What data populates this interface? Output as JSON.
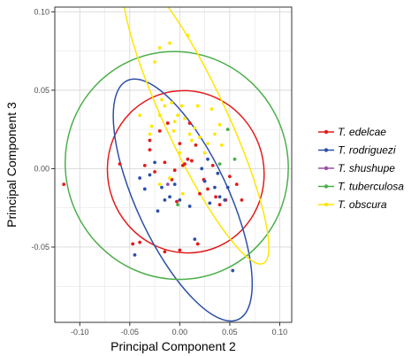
{
  "chart_data": {
    "type": "scatter",
    "xlabel": "Principal Component 2",
    "ylabel": "Principal Component 3",
    "xlim": [
      -0.125,
      0.112
    ],
    "ylim": [
      -0.098,
      0.103
    ],
    "x_ticks": [
      -0.1,
      -0.05,
      0.0,
      0.05,
      0.1
    ],
    "x_tick_labels": [
      "-0.10",
      "-0.05",
      "0.00",
      "0.05",
      "0.10"
    ],
    "y_ticks": [
      -0.05,
      0.0,
      0.05,
      0.1
    ],
    "y_tick_labels": [
      "-0.05",
      "0.00",
      "0.05",
      "0.10"
    ],
    "grid": true,
    "legend_position": "right",
    "series": [
      {
        "name": "T. edelcae",
        "color": "#e41a1c",
        "points": [
          [
            -0.116,
            -0.01
          ],
          [
            -0.06,
            0.003
          ],
          [
            -0.047,
            -0.048
          ],
          [
            -0.04,
            -0.047
          ],
          [
            -0.035,
            0.002
          ],
          [
            -0.025,
            -0.002
          ],
          [
            -0.03,
            0.018
          ],
          [
            -0.02,
            0.024
          ],
          [
            -0.015,
            0.004
          ],
          [
            -0.012,
            0.029
          ],
          [
            -0.008,
            -0.007
          ],
          [
            -0.005,
            -0.001
          ],
          [
            -0.003,
            -0.021
          ],
          [
            0.0,
            0.016
          ],
          [
            0.003,
            0.002
          ],
          [
            0.005,
            0.003
          ],
          [
            0.008,
            0.006
          ],
          [
            0.012,
            0.005
          ],
          [
            0.01,
            0.029
          ],
          [
            0.016,
            0.015
          ],
          [
            0.02,
            -0.016
          ],
          [
            0.024,
            -0.007
          ],
          [
            0.028,
            -0.013
          ],
          [
            0.033,
            0.002
          ],
          [
            0.036,
            -0.018
          ],
          [
            0.04,
            -0.023
          ],
          [
            0.046,
            -0.02
          ],
          [
            0.05,
            -0.005
          ],
          [
            0.057,
            -0.01
          ],
          [
            0.062,
            -0.02
          ],
          [
            0.018,
            -0.048
          ],
          [
            -0.015,
            -0.053
          ],
          [
            0.0,
            -0.052
          ],
          [
            -0.03,
            0.012
          ]
        ]
      },
      {
        "name": "T. rodriguezi",
        "color": "#2c50a8",
        "points": [
          [
            -0.045,
            -0.055
          ],
          [
            -0.04,
            -0.006
          ],
          [
            -0.035,
            -0.013
          ],
          [
            -0.03,
            -0.004
          ],
          [
            -0.025,
            0.004
          ],
          [
            -0.022,
            -0.027
          ],
          [
            -0.018,
            -0.012
          ],
          [
            -0.015,
            -0.02
          ],
          [
            -0.01,
            -0.018
          ],
          [
            -0.005,
            -0.01
          ],
          [
            0.0,
            -0.02
          ],
          [
            0.01,
            -0.024
          ],
          [
            0.015,
            -0.045
          ],
          [
            0.022,
            0.0
          ],
          [
            0.025,
            -0.008
          ],
          [
            0.03,
            -0.022
          ],
          [
            0.035,
            -0.012
          ],
          [
            0.038,
            -0.003
          ],
          [
            0.04,
            -0.018
          ],
          [
            0.045,
            -0.02
          ],
          [
            0.048,
            -0.012
          ],
          [
            0.053,
            -0.065
          ],
          [
            0.028,
            0.006
          ]
        ]
      },
      {
        "name": "T. shushupe",
        "color": "#984ea3",
        "points": [
          [
            -0.012,
            -0.01
          ]
        ]
      },
      {
        "name": "T. tuberculosa",
        "color": "#4daf4a",
        "points": [
          [
            -0.002,
            -0.023
          ],
          [
            0.04,
            0.003
          ],
          [
            0.048,
            0.025
          ],
          [
            0.055,
            0.006
          ]
        ]
      },
      {
        "name": "T. obscura",
        "color": "#ffe600",
        "points": [
          [
            -0.025,
            0.068
          ],
          [
            -0.02,
            0.077
          ],
          [
            -0.01,
            0.08
          ],
          [
            -0.028,
            0.027
          ],
          [
            -0.02,
            0.034
          ],
          [
            -0.015,
            0.04
          ],
          [
            -0.018,
            0.044
          ],
          [
            -0.008,
            0.042
          ],
          [
            -0.005,
            0.03
          ],
          [
            -0.002,
            0.034
          ],
          [
            0.002,
            0.04
          ],
          [
            0.005,
            0.032
          ],
          [
            0.008,
            0.085
          ],
          [
            0.01,
            0.022
          ],
          [
            0.012,
            0.018
          ],
          [
            0.015,
            0.026
          ],
          [
            0.02,
            0.02
          ],
          [
            0.025,
            0.01
          ],
          [
            0.028,
            0.016
          ],
          [
            0.035,
            0.022
          ],
          [
            0.04,
            0.028
          ],
          [
            0.042,
            0.015
          ],
          [
            0.032,
            0.038
          ],
          [
            -0.04,
            0.034
          ],
          [
            -0.03,
            0.022
          ],
          [
            -0.02,
            -0.01
          ],
          [
            -0.01,
            -0.006
          ],
          [
            0.0,
            0.01
          ],
          [
            0.003,
            -0.016
          ],
          [
            -0.006,
            0.024
          ],
          [
            0.018,
            0.04
          ]
        ]
      }
    ],
    "ellipses": [
      {
        "series": "T. edelcae",
        "cx": 0.006,
        "cy": -0.002,
        "rx": 0.078,
        "ry": 0.052,
        "angle": -20
      },
      {
        "series": "T. rodriguezi",
        "cx": 0.003,
        "cy": -0.02,
        "rx": 0.046,
        "ry": 0.084,
        "angle": -25
      },
      {
        "series": "T. tuberculosa",
        "cx": -0.003,
        "cy": 0.002,
        "rx": 0.111,
        "ry": 0.073,
        "angle": -25
      },
      {
        "series": "T. obscura",
        "cx": 0.016,
        "cy": 0.032,
        "rx": 0.031,
        "ry": 0.102,
        "angle": -25
      }
    ]
  }
}
